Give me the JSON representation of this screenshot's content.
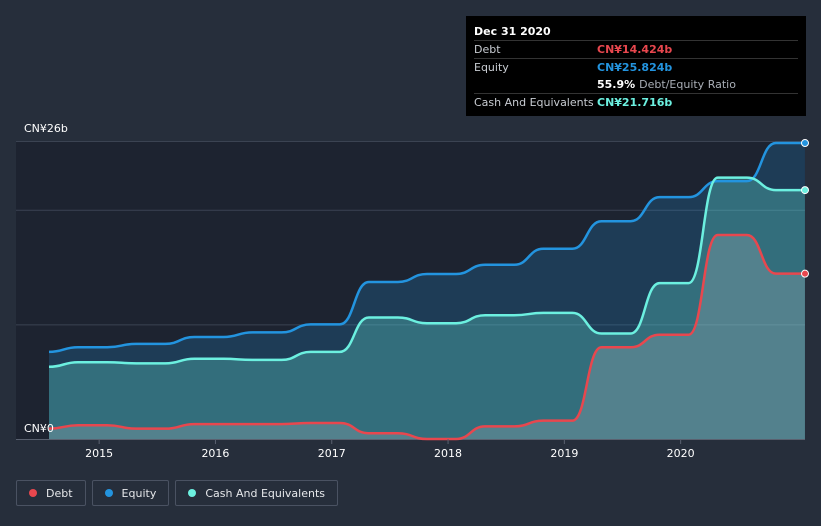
{
  "tooltip": {
    "date": "Dec 31 2020",
    "rows": [
      {
        "label": "Debt",
        "value": "CN¥14.424b",
        "color": "#e8474e"
      },
      {
        "label": "Equity",
        "value": "CN¥25.824b",
        "color": "#2394df"
      },
      {
        "label": "",
        "value": "55.9%",
        "extra": "Debt/Equity Ratio",
        "color": "#ffffff"
      },
      {
        "label": "Cash And Equivalents",
        "value": "CN¥21.716b",
        "color": "#6cf0e0"
      }
    ]
  },
  "legend": [
    {
      "label": "Debt",
      "color": "#e8474e"
    },
    {
      "label": "Equity",
      "color": "#2394df"
    },
    {
      "label": "Cash And Equivalents",
      "color": "#6cf0e0"
    }
  ],
  "chart_data": {
    "type": "area",
    "ylim": [
      0,
      26
    ],
    "y_tick_labels": [
      "CN¥0",
      "CN¥26b"
    ],
    "x_ticks": [
      {
        "label": "2015",
        "x": 2015
      },
      {
        "label": "2016",
        "x": 2016
      },
      {
        "label": "2017",
        "x": 2017
      },
      {
        "label": "2018",
        "x": 2018
      },
      {
        "label": "2019",
        "x": 2019
      },
      {
        "label": "2020",
        "x": 2020
      }
    ],
    "xlim": [
      2014.5,
      2021.0
    ],
    "grid": true,
    "series": [
      {
        "name": "Equity",
        "color": "#2394df",
        "x": [
          2014.5,
          2014.75,
          2015.0,
          2015.25,
          2015.5,
          2015.75,
          2016.0,
          2016.25,
          2016.5,
          2016.75,
          2017.0,
          2017.25,
          2017.5,
          2017.75,
          2018.0,
          2018.25,
          2018.5,
          2018.75,
          2019.0,
          2019.25,
          2019.5,
          2019.75,
          2020.0,
          2020.25,
          2020.5,
          2020.75,
          2021.0
        ],
        "values": [
          7.6,
          8.0,
          8.0,
          8.3,
          8.3,
          8.9,
          8.9,
          9.3,
          9.3,
          10.0,
          10.0,
          13.7,
          13.7,
          14.4,
          14.4,
          15.2,
          15.2,
          16.6,
          16.6,
          19.0,
          19.0,
          21.1,
          21.1,
          22.5,
          22.5,
          25.824,
          25.824
        ]
      },
      {
        "name": "Cash And Equivalents",
        "color": "#6cf0e0",
        "x": [
          2014.5,
          2014.75,
          2015.0,
          2015.25,
          2015.5,
          2015.75,
          2016.0,
          2016.25,
          2016.5,
          2016.75,
          2017.0,
          2017.25,
          2017.5,
          2017.75,
          2018.0,
          2018.25,
          2018.5,
          2018.75,
          2019.0,
          2019.25,
          2019.5,
          2019.75,
          2020.0,
          2020.25,
          2020.5,
          2020.75,
          2021.0
        ],
        "values": [
          6.3,
          6.7,
          6.7,
          6.6,
          6.6,
          7.0,
          7.0,
          6.9,
          6.9,
          7.6,
          7.6,
          10.6,
          10.6,
          10.1,
          10.1,
          10.8,
          10.8,
          11.0,
          11.0,
          9.2,
          9.2,
          13.6,
          13.6,
          22.8,
          22.8,
          21.716,
          21.716
        ]
      },
      {
        "name": "Debt",
        "color": "#e8474e",
        "x": [
          2014.5,
          2014.75,
          2015.0,
          2015.25,
          2015.5,
          2015.75,
          2016.0,
          2016.25,
          2016.5,
          2016.75,
          2017.0,
          2017.25,
          2017.5,
          2017.75,
          2018.0,
          2018.25,
          2018.5,
          2018.75,
          2019.0,
          2019.25,
          2019.5,
          2019.75,
          2020.0,
          2020.25,
          2020.5,
          2020.75,
          2021.0
        ],
        "values": [
          0.9,
          1.2,
          1.2,
          0.9,
          0.9,
          1.3,
          1.3,
          1.3,
          1.3,
          1.4,
          1.4,
          0.5,
          0.5,
          0.0,
          0.0,
          1.1,
          1.1,
          1.6,
          1.6,
          8.0,
          8.0,
          9.1,
          9.1,
          17.8,
          17.8,
          14.424,
          14.424
        ]
      }
    ]
  }
}
